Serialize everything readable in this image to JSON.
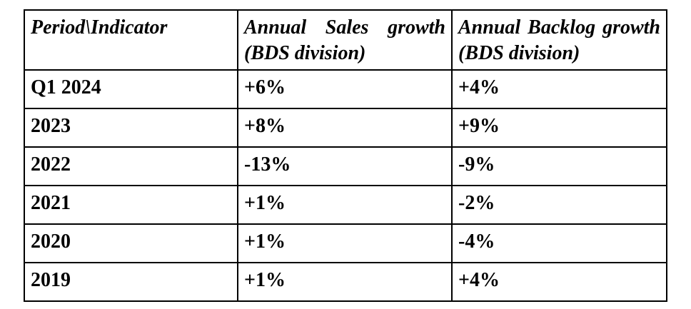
{
  "table": {
    "header": {
      "period_indicator": "Period\\Indicator",
      "sales_line1": "Annual Sales growth",
      "sales_line2": "(BDS division)",
      "backlog_line1": "Annual Backlog growth",
      "backlog_line2": "(BDS division)"
    },
    "rows": [
      {
        "period": "Q1 2024",
        "sales": "+6%",
        "backlog": "+4%"
      },
      {
        "period": "2023",
        "sales": "+8%",
        "backlog": "+9%"
      },
      {
        "period": "2022",
        "sales": "-13%",
        "backlog": "-9%"
      },
      {
        "period": "2021",
        "sales": "+1%",
        "backlog": "-2%"
      },
      {
        "period": "2020",
        "sales": "+1%",
        "backlog": "-4%"
      },
      {
        "period": "2019",
        "sales": "+1%",
        "backlog": "+4%"
      }
    ],
    "style": {
      "border_color": "#000000",
      "text_color": "#000000",
      "background_color": "#ffffff"
    }
  }
}
